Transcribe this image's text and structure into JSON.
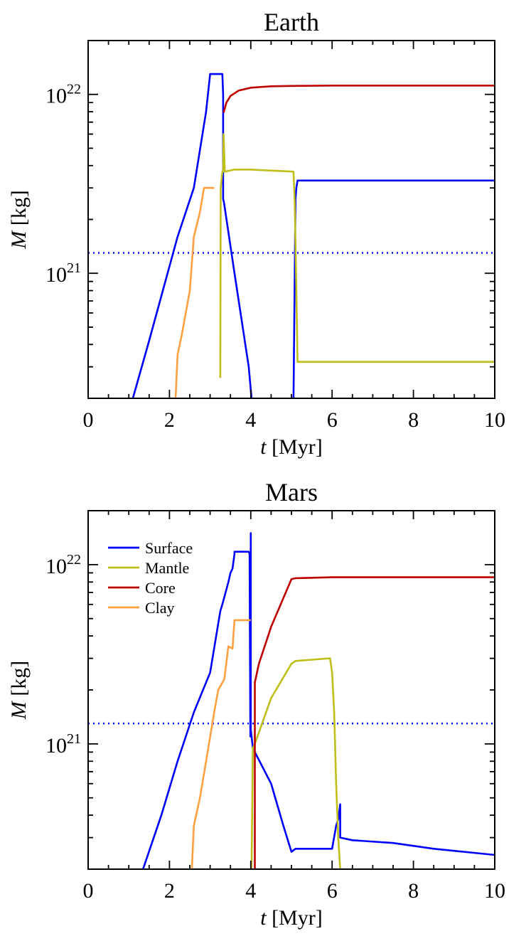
{
  "chart_data": [
    {
      "type": "line",
      "title": "Earth",
      "xlabel_var": "t",
      "xlabel_unit": "[Myr]",
      "ylabel_var": "M",
      "ylabel_unit": "[kg]",
      "xlim": [
        0,
        10
      ],
      "ylim": [
        2e+20,
        2e+22
      ],
      "yscale": "log",
      "xticks": [
        0,
        2,
        4,
        6,
        8,
        10
      ],
      "xtick_labels": [
        "0",
        "2",
        "4",
        "6",
        "8",
        "10"
      ],
      "yticks": [
        {
          "value": 1e+21,
          "base": "10",
          "exp": "21"
        },
        {
          "value": 1e+22,
          "base": "10",
          "exp": "22"
        }
      ],
      "legend": null,
      "hline": {
        "y": 1.3e+21,
        "color": "#0000ff",
        "style": "dotted"
      },
      "series": [
        {
          "key": "surface",
          "color": "#0000ff",
          "x": [
            1.1,
            1.5,
            1.85,
            2.2,
            2.6,
            2.9,
            3.0,
            3.3,
            3.32,
            3.32,
            3.34,
            3.6,
            3.95,
            4.02
          ],
          "y": [
            2e+20,
            4.2e+20,
            8.2e+20,
            1.6e+21,
            3e+21,
            8e+21,
            1.3e+22,
            1.3e+22,
            1e+22,
            2.6e+21,
            2.5e+21,
            1e+21,
            3e+20,
            2e+20
          ]
        },
        {
          "key": "surface2",
          "color": "#0000ff",
          "x": [
            5.05,
            5.1,
            5.12,
            5.15,
            5.2,
            6.0,
            8.0,
            10.0
          ],
          "y": [
            2e+20,
            2.6e+21,
            3e+21,
            3.3e+21,
            3.3e+21,
            3.3e+21,
            3.3e+21,
            3.3e+21
          ]
        },
        {
          "key": "mantle",
          "color": "#bfbf1a",
          "x": [
            3.25,
            3.26,
            3.3,
            3.32,
            3.33,
            3.36,
            3.6,
            4.0,
            4.5,
            5.05,
            5.08,
            5.12,
            5.15,
            5.2,
            6.0,
            8.0,
            10.0
          ],
          "y": [
            2.6e+20,
            3e+21,
            3.7e+21,
            3.7e+21,
            6e+21,
            3.7e+21,
            3.8e+21,
            3.8e+21,
            3.75e+21,
            3.7e+21,
            2.5e+21,
            8e+20,
            3.2e+20,
            3.2e+20,
            3.2e+20,
            3.2e+20,
            3.2e+20
          ]
        },
        {
          "key": "core",
          "color": "#bf0000",
          "x": [
            3.33,
            3.4,
            3.5,
            3.7,
            4.0,
            4.5,
            5.0,
            6.0,
            8.0,
            10.0
          ],
          "y": [
            7.9e+21,
            9e+21,
            9.8e+21,
            1.05e+22,
            1.09e+22,
            1.11e+22,
            1.115e+22,
            1.12e+22,
            1.12e+22,
            1.12e+22
          ]
        },
        {
          "key": "clay",
          "color": "#ffa040",
          "x": [
            2.15,
            2.2,
            2.3,
            2.5,
            2.6,
            2.75,
            2.85,
            3.05,
            3.1
          ],
          "y": [
            2e+20,
            3.5e+20,
            4.5e+20,
            8e+20,
            1.6e+21,
            2.2e+21,
            3e+21,
            3e+21,
            3e+21
          ]
        }
      ]
    },
    {
      "type": "line",
      "title": "Mars",
      "xlabel_var": "t",
      "xlabel_unit": "[Myr]",
      "ylabel_var": "M",
      "ylabel_unit": "[kg]",
      "xlim": [
        0,
        10
      ],
      "ylim": [
        2e+20,
        2e+22
      ],
      "yscale": "log",
      "xticks": [
        0,
        2,
        4,
        6,
        8,
        10
      ],
      "xtick_labels": [
        "0",
        "2",
        "4",
        "6",
        "8",
        "10"
      ],
      "yticks": [
        {
          "value": 1e+21,
          "base": "10",
          "exp": "21"
        },
        {
          "value": 1e+22,
          "base": "10",
          "exp": "22"
        }
      ],
      "legend": {
        "placement": "top-left",
        "entries": [
          {
            "label": "Surface",
            "color": "#0000ff"
          },
          {
            "label": "Mantle",
            "color": "#bfbf1a"
          },
          {
            "label": "Core",
            "color": "#bf0000"
          },
          {
            "label": "Clay",
            "color": "#ffa040"
          }
        ]
      },
      "hline": {
        "y": 1.3e+21,
        "color": "#0000ff",
        "style": "dotted"
      },
      "series": [
        {
          "key": "surface",
          "color": "#0000ff",
          "x": [
            1.35,
            1.8,
            2.2,
            2.6,
            3.0,
            3.25,
            3.3,
            3.45,
            3.5,
            3.55,
            3.6,
            3.6,
            3.95,
            3.97,
            3.99,
            4.0,
            4.0,
            4.02,
            4.05,
            4.1,
            4.5,
            4.8,
            5.0,
            5.1,
            5.9,
            6.0,
            6.1,
            6.15,
            6.2,
            6.2,
            6.5,
            7.5,
            8.5,
            10.0
          ],
          "y": [
            2e+20,
            4e+20,
            8e+20,
            1.5e+21,
            2.5e+21,
            5.5e+21,
            6e+21,
            8e+21,
            9e+21,
            9.5e+21,
            1.15e+22,
            1.18e+22,
            1.18e+22,
            1.15e+22,
            1.1e+21,
            1.5e+22,
            1.2e+21,
            1.1e+21,
            9.5e+20,
            9e+20,
            6e+20,
            3.5e+20,
            2.5e+20,
            2.6e+20,
            2.6e+20,
            2.6e+20,
            3.5e+20,
            3.8e+20,
            4.6e+20,
            3e+20,
            2.9e+20,
            2.8e+20,
            2.6e+20,
            2.4e+20
          ]
        },
        {
          "key": "mantle",
          "color": "#bfbf1a",
          "x": [
            4.02,
            4.05,
            4.1,
            4.5,
            5.0,
            5.1,
            5.5,
            5.95,
            6.0,
            6.05,
            6.1,
            6.15,
            6.2
          ],
          "y": [
            2e+20,
            9.5e+20,
            1e+21,
            1.8e+21,
            2.8e+21,
            2.9e+21,
            2.95e+21,
            3e+21,
            2.5e+21,
            1.5e+21,
            6e+20,
            3e+20,
            2e+20
          ]
        },
        {
          "key": "core",
          "color": "#bf0000",
          "x": [
            4.1,
            4.1,
            4.2,
            4.5,
            5.0,
            5.1,
            6.0,
            8.0,
            10.0
          ],
          "y": [
            2e+20,
            2.2e+21,
            2.8e+21,
            4.5e+21,
            8.3e+21,
            8.4e+21,
            8.5e+21,
            8.5e+21,
            8.5e+21
          ]
        },
        {
          "key": "clay",
          "color": "#ffa040",
          "x": [
            2.55,
            2.6,
            2.75,
            2.9,
            3.1,
            3.2,
            3.35,
            3.45,
            3.55,
            3.6,
            3.95,
            4.0
          ],
          "y": [
            2e+20,
            3.5e+20,
            5e+20,
            8e+20,
            1.5e+21,
            2e+21,
            2.3e+21,
            3.5e+21,
            3.4e+21,
            4.9e+21,
            4.9e+21,
            4.9e+21
          ]
        }
      ]
    }
  ]
}
